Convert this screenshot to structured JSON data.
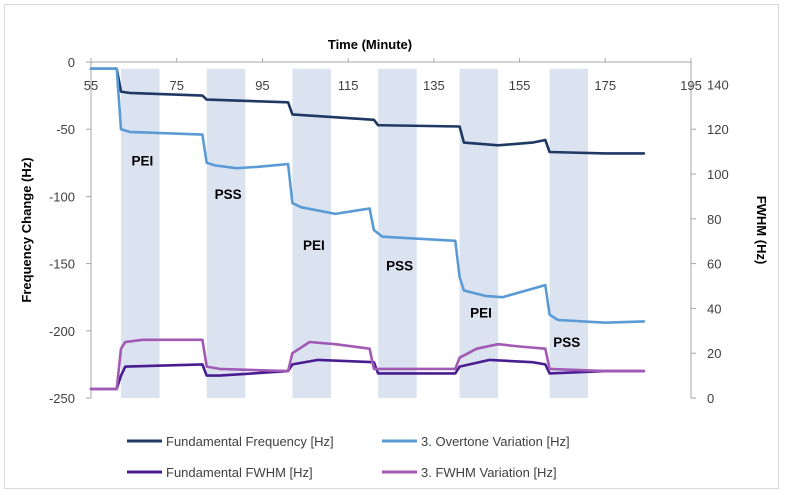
{
  "chart_data": {
    "type": "line",
    "title": "",
    "x_axis": {
      "label": "Time (Minute)",
      "position": "top",
      "min": 55,
      "max": 195,
      "ticks": [
        55,
        75,
        95,
        115,
        135,
        155,
        175,
        195
      ]
    },
    "y_axis_left": {
      "label": "Frequency Change (Hz)",
      "min": -250,
      "max": 0,
      "ticks": [
        0,
        -50,
        -100,
        -150,
        -200,
        -250
      ]
    },
    "y_axis_right": {
      "label": "FWHM (Hz)",
      "min": 0,
      "max": 150,
      "ticks": [
        140,
        120,
        100,
        80,
        60,
        40,
        20,
        0
      ]
    },
    "shaded_intervals": [
      {
        "start": 62,
        "end": 71
      },
      {
        "start": 82,
        "end": 91
      },
      {
        "start": 102,
        "end": 111
      },
      {
        "start": 122,
        "end": 131
      },
      {
        "start": 141,
        "end": 150
      },
      {
        "start": 162,
        "end": 171
      }
    ],
    "annotations": [
      {
        "text": "PEI",
        "x": 67,
        "y": -77
      },
      {
        "text": "PSS",
        "x": 87,
        "y": -102
      },
      {
        "text": "PEI",
        "x": 107,
        "y": -140
      },
      {
        "text": "PSS",
        "x": 127,
        "y": -155
      },
      {
        "text": "PEI",
        "x": 146,
        "y": -190
      },
      {
        "text": "PSS",
        "x": 166,
        "y": -212
      }
    ],
    "series": [
      {
        "name": "Fundamental Frequency [Hz]",
        "axis": "left",
        "color": "#1f3864",
        "points": [
          [
            55,
            -5
          ],
          [
            61,
            -5
          ],
          [
            62,
            -22
          ],
          [
            64,
            -23
          ],
          [
            81,
            -25
          ],
          [
            82,
            -28
          ],
          [
            101,
            -30
          ],
          [
            102,
            -39
          ],
          [
            121,
            -43
          ],
          [
            122,
            -47
          ],
          [
            141,
            -48
          ],
          [
            142,
            -60
          ],
          [
            150,
            -62
          ],
          [
            158,
            -60
          ],
          [
            161,
            -58
          ],
          [
            162,
            -67
          ],
          [
            175,
            -68
          ],
          [
            184,
            -68
          ]
        ]
      },
      {
        "name": "3. Overtone Variation [Hz]",
        "axis": "left",
        "color": "#5b9bd5",
        "points": [
          [
            55,
            -5
          ],
          [
            61,
            -5
          ],
          [
            62,
            -50
          ],
          [
            64,
            -52
          ],
          [
            81,
            -54
          ],
          [
            82,
            -75
          ],
          [
            84,
            -77
          ],
          [
            89,
            -79
          ],
          [
            94,
            -78
          ],
          [
            101,
            -76
          ],
          [
            102,
            -105
          ],
          [
            104,
            -108
          ],
          [
            112,
            -113
          ],
          [
            118,
            -110
          ],
          [
            120,
            -109
          ],
          [
            121,
            -125
          ],
          [
            123,
            -130
          ],
          [
            140,
            -133
          ],
          [
            141,
            -160
          ],
          [
            142,
            -170
          ],
          [
            147,
            -174
          ],
          [
            151,
            -175
          ],
          [
            161,
            -166
          ],
          [
            162,
            -188
          ],
          [
            164,
            -192
          ],
          [
            175,
            -194
          ],
          [
            184,
            -193
          ]
        ]
      },
      {
        "name": "Fundamental FWHM [Hz]",
        "axis": "right",
        "color": "#4a1c91",
        "points": [
          [
            55,
            4
          ],
          [
            61,
            4
          ],
          [
            62,
            10
          ],
          [
            63,
            14
          ],
          [
            81,
            15
          ],
          [
            82,
            10
          ],
          [
            85,
            10
          ],
          [
            101,
            12
          ],
          [
            102,
            15
          ],
          [
            108,
            17
          ],
          [
            121,
            16
          ],
          [
            122,
            11
          ],
          [
            140,
            11
          ],
          [
            141,
            14
          ],
          [
            148,
            17
          ],
          [
            158,
            16
          ],
          [
            161,
            15
          ],
          [
            162,
            11
          ],
          [
            175,
            12
          ],
          [
            184,
            12
          ]
        ]
      },
      {
        "name": "3. FWHM Variation [Hz]",
        "axis": "right",
        "color": "#a05ab4",
        "points": [
          [
            55,
            4
          ],
          [
            61,
            4
          ],
          [
            62,
            22
          ],
          [
            63,
            25
          ],
          [
            67,
            26
          ],
          [
            81,
            26
          ],
          [
            82,
            14
          ],
          [
            85,
            13
          ],
          [
            101,
            12
          ],
          [
            102,
            20
          ],
          [
            106,
            25
          ],
          [
            112,
            24
          ],
          [
            120,
            22
          ],
          [
            121,
            13
          ],
          [
            140,
            13
          ],
          [
            141,
            18
          ],
          [
            145,
            22
          ],
          [
            150,
            24
          ],
          [
            155,
            23
          ],
          [
            161,
            22
          ],
          [
            162,
            13
          ],
          [
            175,
            12
          ],
          [
            184,
            12
          ]
        ]
      }
    ],
    "legend": {
      "position": "bottom",
      "items": [
        "Fundamental Frequency [Hz]",
        "3. Overtone Variation [Hz]",
        "Fundamental FWHM [Hz]",
        "3. FWHM Variation [Hz]"
      ]
    },
    "grid": false
  }
}
